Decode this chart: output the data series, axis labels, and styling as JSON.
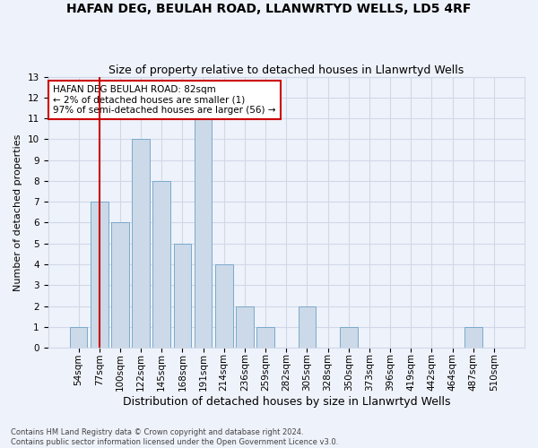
{
  "title1": "HAFAN DEG, BEULAH ROAD, LLANWRTYD WELLS, LD5 4RF",
  "title2": "Size of property relative to detached houses in Llanwrtyd Wells",
  "xlabel": "Distribution of detached houses by size in Llanwrtyd Wells",
  "ylabel": "Number of detached properties",
  "footnote": "Contains HM Land Registry data © Crown copyright and database right 2024.\nContains public sector information licensed under the Open Government Licence v3.0.",
  "categories": [
    "54sqm",
    "77sqm",
    "100sqm",
    "122sqm",
    "145sqm",
    "168sqm",
    "191sqm",
    "214sqm",
    "236sqm",
    "259sqm",
    "282sqm",
    "305sqm",
    "328sqm",
    "350sqm",
    "373sqm",
    "396sqm",
    "419sqm",
    "442sqm",
    "464sqm",
    "487sqm",
    "510sqm"
  ],
  "values": [
    1,
    7,
    6,
    10,
    8,
    5,
    11,
    4,
    2,
    1,
    0,
    2,
    0,
    1,
    0,
    0,
    0,
    0,
    0,
    1,
    0
  ],
  "highlight_index": 1,
  "bar_color": "#ccd9e8",
  "bar_edge_color": "#7aaacc",
  "annotation_box_text": "HAFAN DEG BEULAH ROAD: 82sqm\n← 2% of detached houses are smaller (1)\n97% of semi-detached houses are larger (56) →",
  "annotation_box_color": "white",
  "annotation_box_edge_color": "#cc0000",
  "vline_color": "#cc0000",
  "highlight_index_vline": 1,
  "ylim": [
    0,
    13
  ],
  "yticks": [
    0,
    1,
    2,
    3,
    4,
    5,
    6,
    7,
    8,
    9,
    10,
    11,
    12,
    13
  ],
  "grid_color": "#d0d8e8",
  "background_color": "#eef2fa",
  "title1_fontsize": 10,
  "title2_fontsize": 9,
  "xlabel_fontsize": 9,
  "ylabel_fontsize": 8,
  "tick_fontsize": 7.5,
  "annotation_fontsize": 7.5
}
